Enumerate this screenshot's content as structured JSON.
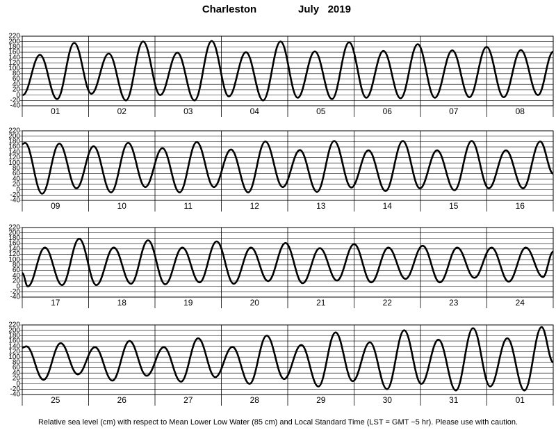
{
  "title": "Charleston",
  "subtitle": "July   2019",
  "caption": "Relative sea level (cm) with respect to Mean Lower Low Water (85 cm) and Local Standard Time (LST = GMT −5 hr). Please use with caution.",
  "chart_data": [
    {
      "type": "line",
      "categories": [
        "01",
        "02",
        "03",
        "04",
        "05",
        "06",
        "07",
        "08"
      ],
      "x": [
        0.2,
        6.4,
        12.6,
        18.8,
        25.0,
        31.3,
        37.5,
        43.7,
        49.9,
        56.1,
        62.3,
        68.5,
        74.7,
        80.9,
        87.1,
        93.4,
        99.6,
        105.8,
        112.0,
        118.2,
        124.4,
        130.6,
        136.8,
        143.0,
        149.2,
        155.5,
        161.7,
        167.9,
        174.1,
        180.3,
        186.5,
        192
      ],
      "series": [
        {
          "color": "#000000",
          "values": [
            0,
            150,
            -15,
            195,
            5,
            155,
            -20,
            200,
            0,
            158,
            -20,
            202,
            -5,
            160,
            -20,
            200,
            -10,
            163,
            -15,
            197,
            -10,
            165,
            -12,
            190,
            -10,
            167,
            -8,
            180,
            -8,
            168,
            0,
            162
          ]
        }
      ],
      "xlim": [
        0,
        192
      ],
      "xticks": [
        0,
        24,
        48,
        72,
        96,
        120,
        144,
        168,
        192
      ],
      "ylim": [
        -40,
        220
      ],
      "yticks": [
        -40,
        -20,
        0,
        20,
        40,
        60,
        80,
        100,
        120,
        140,
        160,
        180,
        200,
        220
      ],
      "grid": true
    },
    {
      "type": "line",
      "categories": [
        "09",
        "10",
        "11",
        "12",
        "13",
        "14",
        "15",
        "16"
      ],
      "x": [
        0,
        1.0,
        7.2,
        13.4,
        19.6,
        25.8,
        32.1,
        38.3,
        44.5,
        50.7,
        56.9,
        63.1,
        69.3,
        75.5,
        81.7,
        87.9,
        94.2,
        100.4,
        106.6,
        112.8,
        119.0,
        125.2,
        131.4,
        137.6,
        143.8,
        150.0,
        156.3,
        162.5,
        168.7,
        174.9,
        181.1,
        187.3,
        192
      ],
      "series": [
        {
          "color": "#000000",
          "values": [
            170,
            175,
            -15,
            172,
            5,
            162,
            -10,
            175,
            10,
            155,
            -10,
            178,
            10,
            150,
            -10,
            180,
            10,
            148,
            -8,
            182,
            8,
            147,
            -5,
            182,
            5,
            147,
            -2,
            182,
            5,
            147,
            5,
            180,
            60
          ]
        }
      ],
      "xlim": [
        0,
        192
      ],
      "xticks": [
        0,
        24,
        48,
        72,
        96,
        120,
        144,
        168,
        192
      ],
      "ylim": [
        -40,
        220
      ],
      "yticks": [
        -40,
        -20,
        0,
        20,
        40,
        60,
        80,
        100,
        120,
        140,
        160,
        180,
        200,
        220
      ],
      "grid": true
    },
    {
      "type": "line",
      "categories": [
        "17",
        "18",
        "19",
        "20",
        "21",
        "22",
        "23",
        "24"
      ],
      "x": [
        0,
        2.0,
        8.2,
        14.4,
        20.6,
        26.8,
        33.1,
        39.3,
        45.5,
        51.7,
        57.9,
        64.1,
        70.3,
        76.5,
        82.7,
        88.9,
        95.2,
        101.4,
        107.6,
        113.8,
        120.0,
        126.2,
        132.4,
        138.6,
        144.8,
        151.0,
        157.3,
        163.5,
        169.7,
        175.9,
        182.1,
        188.3,
        192
      ],
      "series": [
        {
          "color": "#000000",
          "values": [
            50,
            0,
            145,
            5,
            178,
            5,
            145,
            10,
            172,
            8,
            145,
            15,
            168,
            10,
            145,
            20,
            162,
            12,
            143,
            22,
            158,
            15,
            145,
            28,
            152,
            15,
            145,
            32,
            145,
            18,
            145,
            35,
            130
          ]
        }
      ],
      "xlim": [
        0,
        192
      ],
      "xticks": [
        0,
        24,
        48,
        72,
        96,
        120,
        144,
        168,
        192
      ],
      "ylim": [
        -40,
        220
      ],
      "yticks": [
        -40,
        -20,
        0,
        20,
        40,
        60,
        80,
        100,
        120,
        140,
        160,
        180,
        200,
        220
      ],
      "grid": true
    },
    {
      "type": "line",
      "categories": [
        "25",
        "26",
        "27",
        "28",
        "29",
        "30",
        "31",
        "01"
      ],
      "x": [
        0,
        1.5,
        7.7,
        13.9,
        20.1,
        26.3,
        32.6,
        38.8,
        45.0,
        51.2,
        57.4,
        63.6,
        69.8,
        76.0,
        82.2,
        88.4,
        94.7,
        100.9,
        107.1,
        113.3,
        119.5,
        125.7,
        131.9,
        138.1,
        144.3,
        150.5,
        156.8,
        163.0,
        169.2,
        175.4,
        181.6,
        187.8,
        192
      ],
      "series": [
        {
          "color": "#000000",
          "values": [
            135,
            140,
            15,
            152,
            35,
            137,
            12,
            160,
            30,
            137,
            8,
            170,
            25,
            138,
            0,
            180,
            18,
            145,
            -10,
            192,
            10,
            155,
            -20,
            200,
            0,
            165,
            -25,
            208,
            -10,
            170,
            -25,
            212,
            80
          ]
        }
      ],
      "xlim": [
        0,
        192
      ],
      "xticks": [
        0,
        24,
        48,
        72,
        96,
        120,
        144,
        168,
        192
      ],
      "ylim": [
        -40,
        220
      ],
      "yticks": [
        -40,
        -20,
        0,
        20,
        40,
        60,
        80,
        100,
        120,
        140,
        160,
        180,
        200,
        220
      ],
      "grid": true
    }
  ]
}
